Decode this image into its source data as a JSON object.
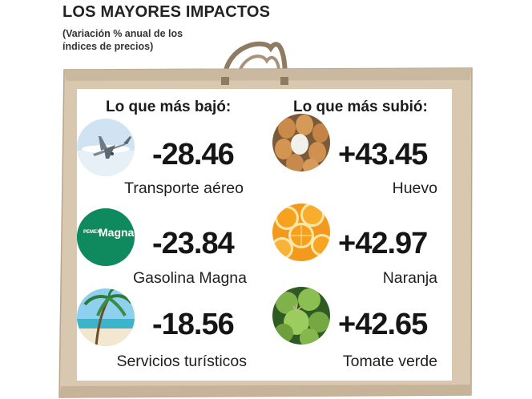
{
  "header": {
    "title": "LOS MAYORES IMPACTOS",
    "subtitle_line1": "(Variación % anual de los",
    "subtitle_line2": "índices de precios)"
  },
  "columns": {
    "left_heading": "Lo que más bajó:",
    "right_heading": "Lo que más subió:"
  },
  "decreases": [
    {
      "value": "-28.46",
      "label": "Transporte aéreo",
      "icon": "airplane-icon"
    },
    {
      "value": "-23.84",
      "label": "Gasolina Magna",
      "icon": "pemex-magna-logo",
      "logo_text_brand": "PEMEX",
      "logo_text_product": "Magna"
    },
    {
      "value": "-18.56",
      "label": "Servicios turísticos",
      "icon": "beach-palm-icon"
    }
  ],
  "increases": [
    {
      "value": "+43.45",
      "label": "Huevo",
      "icon": "eggs-icon"
    },
    {
      "value": "+42.97",
      "label": "Naranja",
      "icon": "orange-slices-icon"
    },
    {
      "value": "+42.65",
      "label": "Tomate verde",
      "icon": "green-tomato-icon"
    }
  ],
  "colors": {
    "bag": "#d8c8b0",
    "bag_edge": "#b9a58a",
    "handle": "#8f7a62",
    "pemex_green": "#0f8a5e"
  }
}
